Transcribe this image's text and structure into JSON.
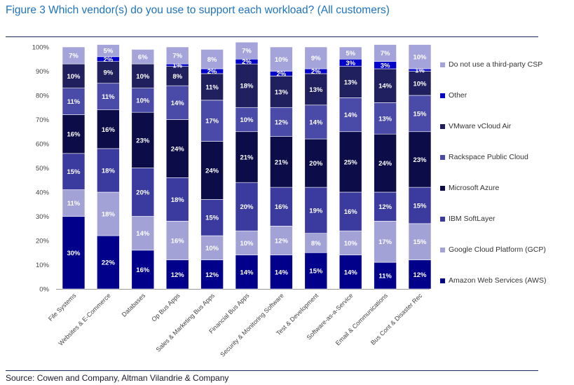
{
  "page": {
    "title": "Figure 3 Which vendor(s) do you use to support each workload? (All customers)",
    "source": "Source: Cowen and Company, Altman Vilandrie & Company"
  },
  "colors": {
    "series": [
      "#00008b",
      "#a2a2d6",
      "#3a3a9f",
      "#0c0c48",
      "#4a4aa8",
      "#20205e",
      "#0000cc",
      "#a4a4da"
    ],
    "label_dark_bg": "#ffffff",
    "axis": "#999999"
  },
  "chart_data": {
    "type": "bar",
    "stacked": true,
    "title": "Figure 3 Which vendor(s) do you use to support each workload? (All customers)",
    "xlabel": "",
    "ylabel": "",
    "ylim": [
      0,
      100
    ],
    "yticks": [
      "0%",
      "10%",
      "20%",
      "30%",
      "40%",
      "50%",
      "60%",
      "70%",
      "80%",
      "90%",
      "100%"
    ],
    "legend_position": "right",
    "categories": [
      "File Systems",
      "Websites & E-Commerce",
      "Databases",
      "Op Bus Apps",
      "Sales & Marketing Bus Apps",
      "Financial Bus Apps",
      "Security & Monitoring Software",
      "Test & Development",
      "Software-as-a-Service",
      "Email & Communications",
      "Bus Cont & Disaster Rec"
    ],
    "series": [
      {
        "name": "Amazon Web Services (AWS)",
        "values": [
          30,
          22,
          16,
          12,
          12,
          14,
          14,
          15,
          14,
          11,
          12
        ],
        "labels": [
          "30%",
          "22%",
          "16%",
          "12%",
          "12%",
          "14%",
          "14%",
          "15%",
          "14%",
          "11%",
          "12%"
        ]
      },
      {
        "name": "Google Cloud Platform (GCP)",
        "values": [
          11,
          18,
          14,
          16,
          10,
          10,
          12,
          8,
          10,
          17,
          15
        ],
        "labels": [
          "11%",
          "18%",
          "14%",
          "16%",
          "10%",
          "10%",
          "12%",
          "8%",
          "10%",
          "17%",
          "15%"
        ]
      },
      {
        "name": "IBM SoftLayer",
        "values": [
          15,
          18,
          20,
          18,
          15,
          20,
          16,
          19,
          16,
          12,
          15
        ],
        "labels": [
          "15%",
          "18%",
          "20%",
          "18%",
          "15%",
          "20%",
          "16%",
          "19%",
          "16%",
          "12%",
          "15%"
        ]
      },
      {
        "name": "Microsoft Azure",
        "values": [
          16,
          16,
          23,
          24,
          24,
          21,
          21,
          20,
          25,
          24,
          23
        ],
        "labels": [
          "16%",
          "16%",
          "23%",
          "24%",
          "24%",
          "21%",
          "21%",
          "20%",
          "25%",
          "24%",
          "23%"
        ]
      },
      {
        "name": "Rackspace Public Cloud",
        "values": [
          11,
          11,
          10,
          14,
          17,
          10,
          12,
          14,
          14,
          13,
          15
        ],
        "labels": [
          "11%",
          "11%",
          "10%",
          "14%",
          "17%",
          "10%",
          "12%",
          "14%",
          "14%",
          "13%",
          "15%"
        ]
      },
      {
        "name": "VMware vCloud Air",
        "values": [
          10,
          9,
          10,
          8,
          11,
          18,
          13,
          13,
          13,
          14,
          10
        ],
        "labels": [
          "10%",
          "9%",
          "10%",
          "8%",
          "11%",
          "18%",
          "13%",
          "13%",
          "13%",
          "14%",
          "10%"
        ]
      },
      {
        "name": "Other",
        "values": [
          0,
          2,
          0,
          1,
          2,
          2,
          2,
          2,
          3,
          3,
          1
        ],
        "labels": [
          "",
          "2%",
          "",
          "1%",
          "2%",
          "2%",
          "2%",
          "2%",
          "3%",
          "3%",
          "1%"
        ]
      },
      {
        "name": "Do not use a third-party CSP",
        "values": [
          7,
          5,
          6,
          7,
          8,
          7,
          10,
          9,
          5,
          7,
          10
        ],
        "labels": [
          "7%",
          "5%",
          "6%",
          "7%",
          "8%",
          "7%",
          "10%",
          "9%",
          "5%",
          "7%",
          "10%"
        ]
      }
    ],
    "legend_order": [
      "Do not use a third-party CSP",
      "Other",
      "VMware vCloud Air",
      "Rackspace Public Cloud",
      "Microsoft Azure",
      "IBM SoftLayer",
      "Google Cloud Platform (GCP)",
      "Amazon Web Services (AWS)"
    ]
  }
}
